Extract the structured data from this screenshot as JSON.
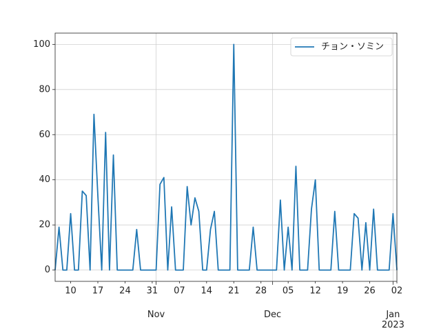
{
  "chart_data": {
    "type": "line",
    "x": [
      "2022-10-06",
      "2022-10-07",
      "2022-10-08",
      "2022-10-09",
      "2022-10-10",
      "2022-10-11",
      "2022-10-12",
      "2022-10-13",
      "2022-10-14",
      "2022-10-15",
      "2022-10-16",
      "2022-10-17",
      "2022-10-18",
      "2022-10-19",
      "2022-10-20",
      "2022-10-21",
      "2022-10-22",
      "2022-10-23",
      "2022-10-24",
      "2022-10-25",
      "2022-10-26",
      "2022-10-27",
      "2022-10-28",
      "2022-10-29",
      "2022-10-30",
      "2022-10-31",
      "2022-11-01",
      "2022-11-02",
      "2022-11-03",
      "2022-11-04",
      "2022-11-05",
      "2022-11-06",
      "2022-11-07",
      "2022-11-08",
      "2022-11-09",
      "2022-11-10",
      "2022-11-11",
      "2022-11-12",
      "2022-11-13",
      "2022-11-14",
      "2022-11-15",
      "2022-11-16",
      "2022-11-17",
      "2022-11-18",
      "2022-11-19",
      "2022-11-20",
      "2022-11-21",
      "2022-11-22",
      "2022-11-23",
      "2022-11-24",
      "2022-11-25",
      "2022-11-26",
      "2022-11-27",
      "2022-11-28",
      "2022-11-29",
      "2022-11-30",
      "2022-12-01",
      "2022-12-02",
      "2022-12-03",
      "2022-12-04",
      "2022-12-05",
      "2022-12-06",
      "2022-12-07",
      "2022-12-08",
      "2022-12-09",
      "2022-12-10",
      "2022-12-11",
      "2022-12-12",
      "2022-12-13",
      "2022-12-14",
      "2022-12-15",
      "2022-12-16",
      "2022-12-17",
      "2022-12-18",
      "2022-12-19",
      "2022-12-20",
      "2022-12-21",
      "2022-12-22",
      "2022-12-23",
      "2022-12-24",
      "2022-12-25",
      "2022-12-26",
      "2022-12-27",
      "2022-12-28",
      "2022-12-29",
      "2022-12-30",
      "2022-12-31",
      "2023-01-01",
      "2023-01-02"
    ],
    "series": [
      {
        "name": "チョン・ソミン",
        "color": "#1f77b4",
        "values": [
          0,
          19,
          0,
          0,
          25,
          0,
          0,
          35,
          33,
          0,
          69,
          33,
          0,
          61,
          0,
          51,
          0,
          0,
          0,
          0,
          0,
          18,
          0,
          0,
          0,
          0,
          0,
          38,
          41,
          0,
          28,
          0,
          0,
          0,
          37,
          20,
          32,
          26,
          0,
          0,
          18,
          26,
          0,
          0,
          0,
          0,
          100,
          0,
          0,
          0,
          0,
          19,
          0,
          0,
          0,
          0,
          0,
          0,
          31,
          0,
          19,
          0,
          46,
          0,
          0,
          0,
          27,
          40,
          0,
          0,
          0,
          0,
          26,
          0,
          0,
          0,
          0,
          25,
          23,
          0,
          21,
          0,
          27,
          0,
          0,
          0,
          0,
          25,
          0
        ]
      }
    ],
    "xlim": [
      "2022-10-06",
      "2023-01-02"
    ],
    "ylim": [
      -5,
      105
    ],
    "yticks": [
      0,
      20,
      40,
      60,
      80,
      100
    ],
    "xticks": [
      {
        "value": "2022-10-10",
        "label": "10"
      },
      {
        "value": "2022-10-17",
        "label": "17"
      },
      {
        "value": "2022-10-24",
        "label": "24"
      },
      {
        "value": "2022-10-31",
        "label": "31"
      },
      {
        "value": "2022-11-07",
        "label": "07"
      },
      {
        "value": "2022-11-14",
        "label": "14"
      },
      {
        "value": "2022-11-21",
        "label": "21"
      },
      {
        "value": "2022-11-28",
        "label": "28"
      },
      {
        "value": "2022-12-05",
        "label": "05"
      },
      {
        "value": "2022-12-12",
        "label": "12"
      },
      {
        "value": "2022-12-19",
        "label": "19"
      },
      {
        "value": "2022-12-26",
        "label": "26"
      },
      {
        "value": "2023-01-02",
        "label": "02"
      }
    ],
    "xmajorticks": [
      {
        "value": "2022-11-01",
        "label": "Nov"
      },
      {
        "value": "2022-12-01",
        "label": "Dec"
      },
      {
        "value": "2023-01-01",
        "label": "Jan\n2023"
      }
    ],
    "grid": true,
    "legend": "upper right"
  }
}
